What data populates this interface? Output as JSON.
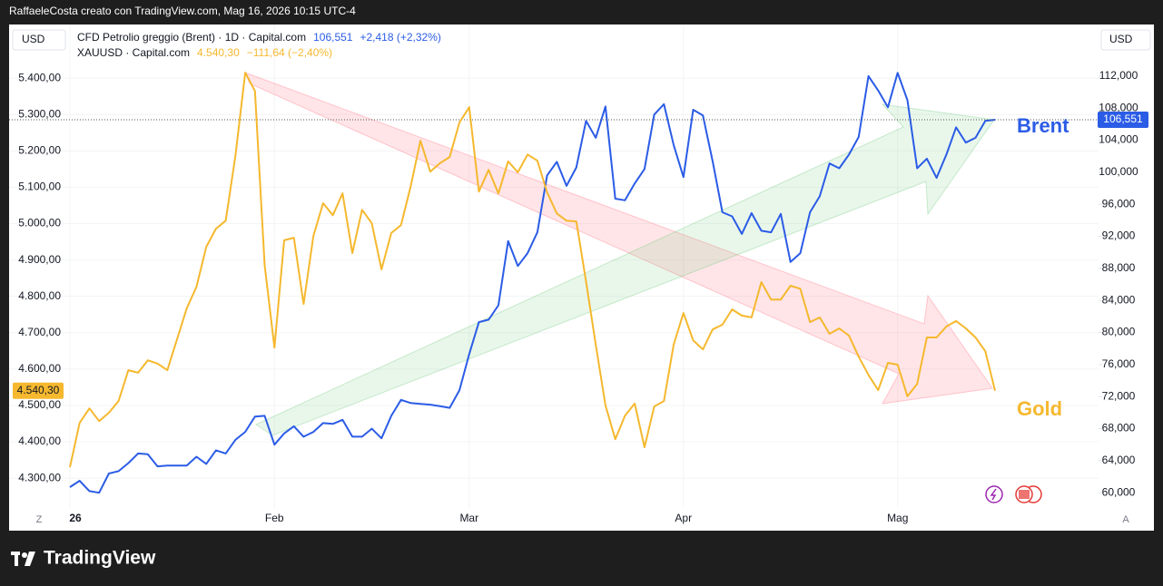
{
  "attribution": "RaffaeleCosta creato con TradingView.com, Mag 16, 2026 10:15 UTC-4",
  "brand": "TradingView",
  "chart_data": {
    "type": "line",
    "categories": [
      "26",
      null,
      null,
      null,
      null,
      null,
      null,
      null,
      null,
      null,
      null,
      null,
      null,
      null,
      null,
      null,
      null,
      null,
      null,
      null,
      null,
      "Feb",
      null,
      null,
      null,
      null,
      null,
      null,
      null,
      null,
      null,
      null,
      null,
      null,
      null,
      null,
      null,
      null,
      null,
      null,
      null,
      "Mar",
      null,
      null,
      null,
      null,
      null,
      null,
      null,
      null,
      null,
      null,
      null,
      null,
      null,
      null,
      null,
      null,
      null,
      null,
      null,
      null,
      null,
      "Apr",
      null,
      null,
      null,
      null,
      null,
      null,
      null,
      null,
      null,
      null,
      null,
      null,
      null,
      null,
      null,
      null,
      null,
      null,
      null,
      null,
      null,
      "Mag",
      null,
      null,
      null,
      null,
      null,
      null,
      null,
      null,
      null,
      null
    ],
    "ylim": [
      4218,
      5540
    ],
    "yticks": [
      {
        "value": 4300,
        "label": "4.300,00"
      },
      {
        "value": 4400,
        "label": "4.400,00"
      },
      {
        "value": 4500,
        "label": "4.500,00"
      },
      {
        "value": 4600,
        "label": "4.600,00"
      },
      {
        "value": 4700,
        "label": "4.700,00"
      },
      {
        "value": 4800,
        "label": "4.800,00"
      },
      {
        "value": 4900,
        "label": "4.900,00"
      },
      {
        "value": 5000,
        "label": "5.000,00"
      },
      {
        "value": 5100,
        "label": "5.100,00"
      },
      {
        "value": 5200,
        "label": "5.200,00"
      },
      {
        "value": 5300,
        "label": "5.300,00"
      },
      {
        "value": 5400,
        "label": "5.400,00"
      }
    ],
    "y2lim": [
      58.1,
      118.1
    ],
    "y2ticks": [
      {
        "value": 60,
        "label": "60,000"
      },
      {
        "value": 64,
        "label": "64,000"
      },
      {
        "value": 68,
        "label": "68,000"
      },
      {
        "value": 72,
        "label": "72,000"
      },
      {
        "value": 76,
        "label": "76,000"
      },
      {
        "value": 80,
        "label": "80,000"
      },
      {
        "value": 84,
        "label": "84,000"
      },
      {
        "value": 88,
        "label": "88,000"
      },
      {
        "value": 92,
        "label": "92,000"
      },
      {
        "value": 96,
        "label": "96,000"
      },
      {
        "value": 100,
        "label": "100,000"
      },
      {
        "value": 104,
        "label": "104,000"
      },
      {
        "value": 108,
        "label": "108,000"
      },
      {
        "value": 112,
        "label": "112,000"
      }
    ],
    "y_unit": "USD",
    "y2_unit": "USD",
    "grid": true,
    "series": [
      {
        "name": "CFD Petrolio greggio (Brent) · 1D · Capital.com",
        "color": "#2b5ce6",
        "axis": "y2",
        "last_label": "106,551",
        "change_label": "+2,418 (+2,32%)",
        "values": [
          60.7,
          61.5,
          60.2,
          60.0,
          62.4,
          62.7,
          63.7,
          64.9,
          64.8,
          63.3,
          63.4,
          63.4,
          63.4,
          64.5,
          63.6,
          65.3,
          64.9,
          66.6,
          67.6,
          69.5,
          69.6,
          66.0,
          67.4,
          68.3,
          67.0,
          67.6,
          68.7,
          68.6,
          69.1,
          67.0,
          67.0,
          68.0,
          66.8,
          69.6,
          71.6,
          71.2,
          71.1,
          71.0,
          70.8,
          70.6,
          72.8,
          77.3,
          81.3,
          81.6,
          83.4,
          91.4,
          88.3,
          89.9,
          92.5,
          99.6,
          101.3,
          98.3,
          100.6,
          106.4,
          104.3,
          108.2,
          96.7,
          96.5,
          98.6,
          100.4,
          107.2,
          108.5,
          103.4,
          99.4,
          107.8,
          107.1,
          101.4,
          95.0,
          94.5,
          92.3,
          94.9,
          92.7,
          92.5,
          94.8,
          88.8,
          89.9,
          95.0,
          97.0,
          101.1,
          100.5,
          102.2,
          104.4,
          112.0,
          110.2,
          108.1,
          112.4,
          109.0,
          100.5,
          101.7,
          99.3,
          102.2,
          105.6,
          103.7,
          104.3,
          106.4,
          106.551
        ]
      },
      {
        "name": "XAUUSD · Capital.com",
        "color": "#f5b82e",
        "axis": "y",
        "last_label": "4.540,30",
        "change_label": "−111,64 (−2,40%)",
        "values": [
          4330,
          4452,
          4492,
          4457,
          4480,
          4512,
          4597,
          4590,
          4624,
          4615,
          4597,
          4682,
          4767,
          4826,
          4936,
          4986,
          5008,
          5186,
          5415,
          5365,
          4886,
          4659,
          4954,
          4961,
          4779,
          4966,
          5056,
          5023,
          5083,
          4919,
          5038,
          5001,
          4874,
          4974,
          4996,
          5103,
          5228,
          5143,
          5166,
          5183,
          5278,
          5320,
          5088,
          5148,
          5083,
          5171,
          5141,
          5190,
          5173,
          5086,
          5028,
          5008,
          5006,
          4841,
          4667,
          4500,
          4407,
          4472,
          4505,
          4385,
          4497,
          4512,
          4667,
          4754,
          4679,
          4654,
          4709,
          4722,
          4764,
          4747,
          4742,
          4839,
          4791,
          4791,
          4829,
          4821,
          4729,
          4742,
          4697,
          4712,
          4692,
          4634,
          4584,
          4542,
          4617,
          4612,
          4525,
          4559,
          4687,
          4687,
          4717,
          4732,
          4712,
          4687,
          4649,
          4540.3
        ]
      }
    ],
    "annotations": [
      {
        "text": "Brent",
        "color": "#2b5ce6"
      },
      {
        "text": "Gold",
        "color": "#f5b82e"
      }
    ],
    "buttons": [
      "Z",
      "A"
    ]
  }
}
